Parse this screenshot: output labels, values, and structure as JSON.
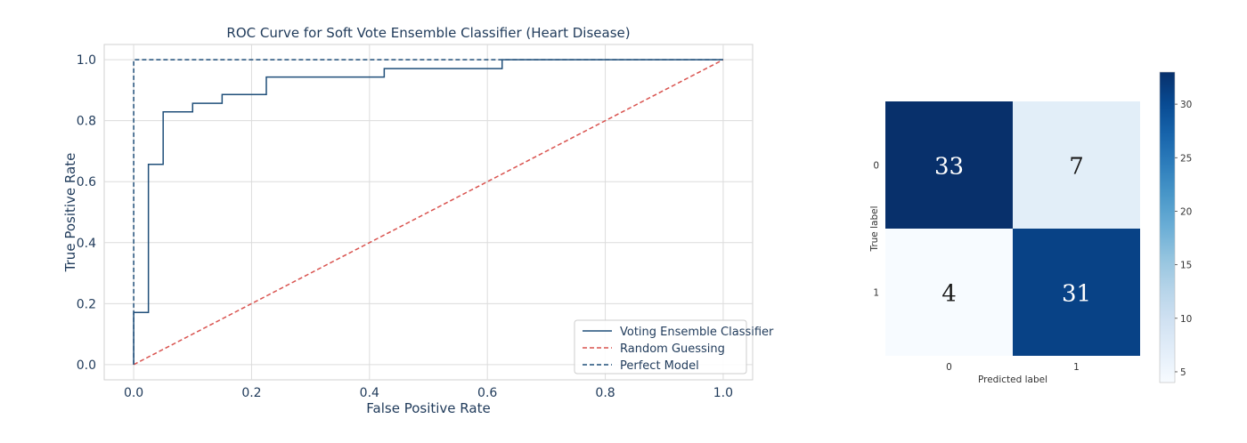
{
  "chart_data": [
    {
      "type": "line",
      "title": "ROC Curve for Soft Vote Ensemble Classifier (Heart Disease)",
      "xlabel": "False Positive Rate",
      "ylabel": "True Positive Rate",
      "xlim": [
        -0.05,
        1.05
      ],
      "ylim": [
        -0.05,
        1.05
      ],
      "xticks": [
        "0.0",
        "0.2",
        "0.4",
        "0.6",
        "0.8",
        "1.0"
      ],
      "yticks": [
        "0.0",
        "0.2",
        "0.4",
        "0.6",
        "0.8",
        "1.0"
      ],
      "grid": true,
      "legend": "lower-right",
      "series": [
        {
          "name": "Voting Ensemble Classifier",
          "style": "solid",
          "color": "#1f4e79",
          "x": [
            0,
            0,
            0.025,
            0.025,
            0.05,
            0.05,
            0.1,
            0.1,
            0.15,
            0.15,
            0.225,
            0.225,
            0.425,
            0.425,
            0.625,
            0.625,
            1.0
          ],
          "y": [
            0,
            0.171,
            0.171,
            0.657,
            0.657,
            0.829,
            0.829,
            0.857,
            0.857,
            0.886,
            0.886,
            0.943,
            0.943,
            0.971,
            0.971,
            1.0,
            1.0
          ]
        },
        {
          "name": "Random Guessing",
          "style": "dashed",
          "color": "#d9534f",
          "x": [
            0,
            1
          ],
          "y": [
            0,
            1
          ]
        },
        {
          "name": "Perfect Model",
          "style": "dashed",
          "color": "#1f4e79",
          "x": [
            0,
            0,
            1
          ],
          "y": [
            0,
            1,
            1
          ]
        }
      ]
    },
    {
      "type": "heatmap",
      "xlabel": "Predicted label",
      "ylabel": "True label",
      "x_categories": [
        "0",
        "1"
      ],
      "y_categories": [
        "0",
        "1"
      ],
      "values": [
        [
          33,
          7
        ],
        [
          4,
          31
        ]
      ],
      "colormap": "Blues",
      "colorbar_range": [
        4,
        33
      ],
      "colorbar_ticks": [
        "5",
        "10",
        "15",
        "20",
        "25",
        "30"
      ]
    }
  ]
}
